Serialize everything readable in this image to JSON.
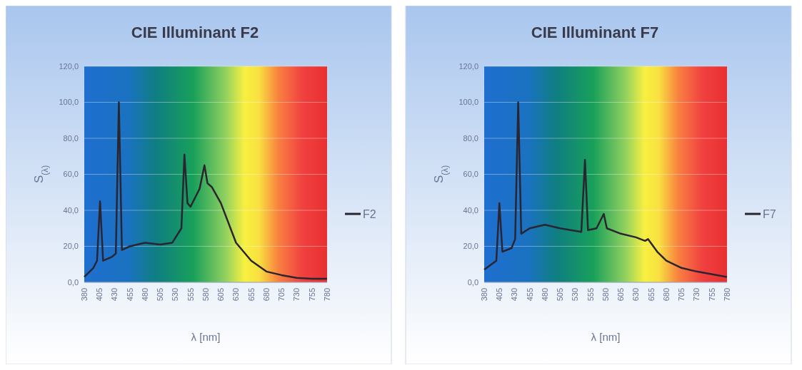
{
  "chart_data": [
    {
      "type": "line",
      "title": "CIE Illuminant F2",
      "xlabel": "λ [nm]",
      "ylabel": "S$_{(λ)}$",
      "xlim": [
        380,
        780
      ],
      "xticks": [
        380,
        405,
        430,
        455,
        480,
        505,
        530,
        555,
        580,
        605,
        630,
        655,
        680,
        705,
        730,
        755,
        780
      ],
      "ylim": [
        0,
        120
      ],
      "yticks": [
        {
          "value": 0,
          "label": "0,0"
        },
        {
          "value": 20,
          "label": "20,0"
        },
        {
          "value": 40,
          "label": "40,0"
        },
        {
          "value": 60,
          "label": "60,0"
        },
        {
          "value": 80,
          "label": "80,0"
        },
        {
          "value": 100,
          "label": "100,0"
        },
        {
          "value": 120,
          "label": "120,0"
        }
      ],
      "grid": "y",
      "legend": "right",
      "marker": "none",
      "line_style": "solid",
      "series": [
        {
          "name": "F2",
          "color": "#2a2530",
          "x": [
            380,
            395,
            401,
            406,
            411,
            425,
            432,
            437,
            442,
            455,
            480,
            505,
            525,
            540,
            545,
            550,
            555,
            570,
            578,
            583,
            590,
            605,
            630,
            655,
            680,
            705,
            730,
            755,
            780
          ],
          "values": [
            3,
            8,
            12,
            45,
            12,
            14,
            16,
            100,
            18,
            20,
            22,
            21,
            22,
            30,
            71,
            44,
            42,
            52,
            65,
            55,
            53,
            44,
            22,
            12,
            6,
            4,
            2.5,
            2,
            2
          ]
        }
      ]
    },
    {
      "type": "line",
      "title": "CIE Illuminant F7",
      "xlabel": "λ [nm]",
      "ylabel": "S$_{(λ)}$",
      "xlim": [
        380,
        780
      ],
      "xticks": [
        380,
        405,
        430,
        455,
        480,
        505,
        530,
        555,
        580,
        605,
        630,
        655,
        680,
        705,
        730,
        755,
        780
      ],
      "ylim": [
        0,
        120
      ],
      "yticks": [
        {
          "value": 0,
          "label": "0,0"
        },
        {
          "value": 20,
          "label": "20,0"
        },
        {
          "value": 40,
          "label": "40,0"
        },
        {
          "value": 60,
          "label": "60,0"
        },
        {
          "value": 80,
          "label": "80,0"
        },
        {
          "value": 100,
          "label": "100,0"
        },
        {
          "value": 120,
          "label": "120,0"
        }
      ],
      "grid": "y",
      "legend": "right",
      "marker": "none",
      "line_style": "solid",
      "series": [
        {
          "name": "F7",
          "color": "#2a2530",
          "x": [
            380,
            400,
            405,
            410,
            425,
            431,
            436,
            441,
            455,
            480,
            505,
            540,
            546,
            551,
            565,
            577,
            582,
            605,
            630,
            645,
            650,
            665,
            680,
            705,
            730,
            780
          ],
          "values": [
            7,
            12,
            44,
            17,
            19,
            24,
            100,
            27,
            30,
            32,
            30,
            28,
            68,
            29,
            30,
            38,
            30,
            27,
            25,
            23,
            24,
            17,
            12,
            8,
            6,
            3
          ]
        }
      ]
    }
  ]
}
